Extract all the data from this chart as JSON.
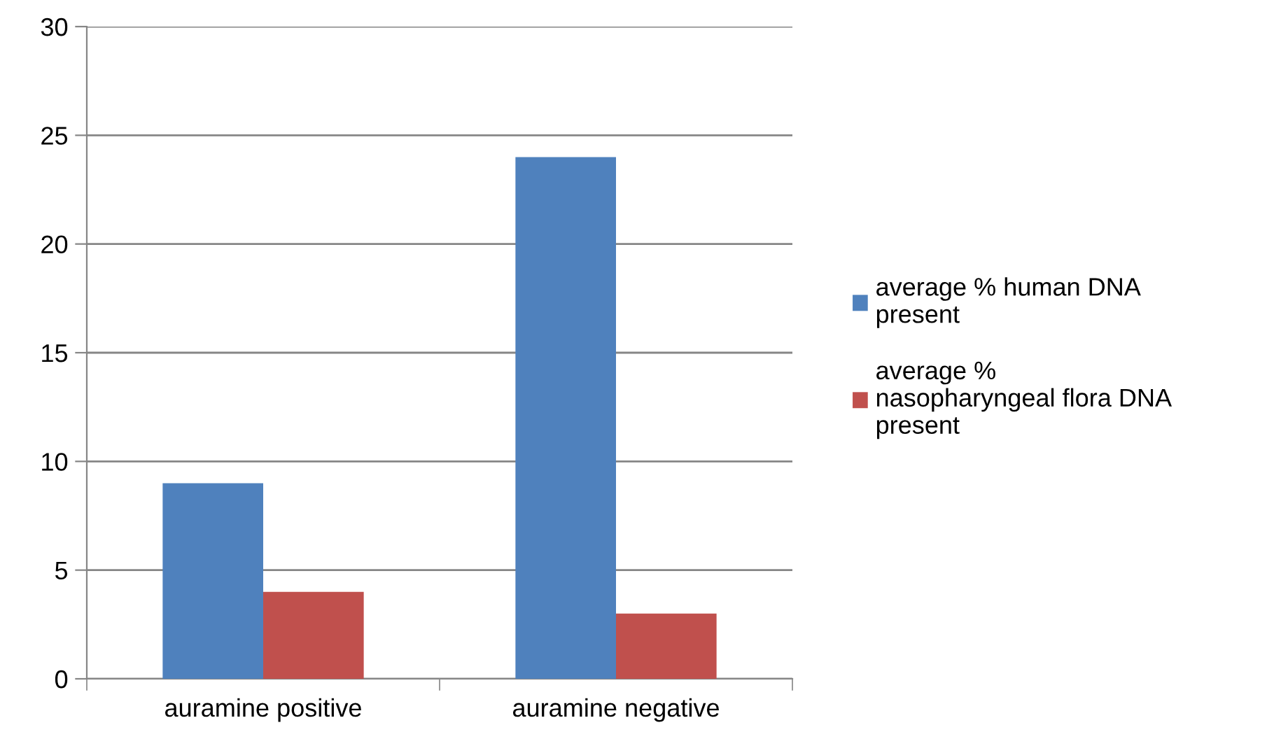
{
  "chart_data": {
    "type": "bar",
    "categories": [
      "auramine positive",
      "auramine negative"
    ],
    "series": [
      {
        "name": "average % human DNA\npresent",
        "color": "#4f81bd",
        "values": [
          9,
          24
        ]
      },
      {
        "name": "average %\nnasopharyngeal flora DNA\npresent",
        "color": "#c0504d",
        "values": [
          4,
          3
        ]
      }
    ],
    "ylim": [
      0,
      30
    ],
    "yticks": [
      0,
      5,
      10,
      15,
      20,
      25,
      30
    ],
    "grid": "y",
    "legend": "right"
  }
}
